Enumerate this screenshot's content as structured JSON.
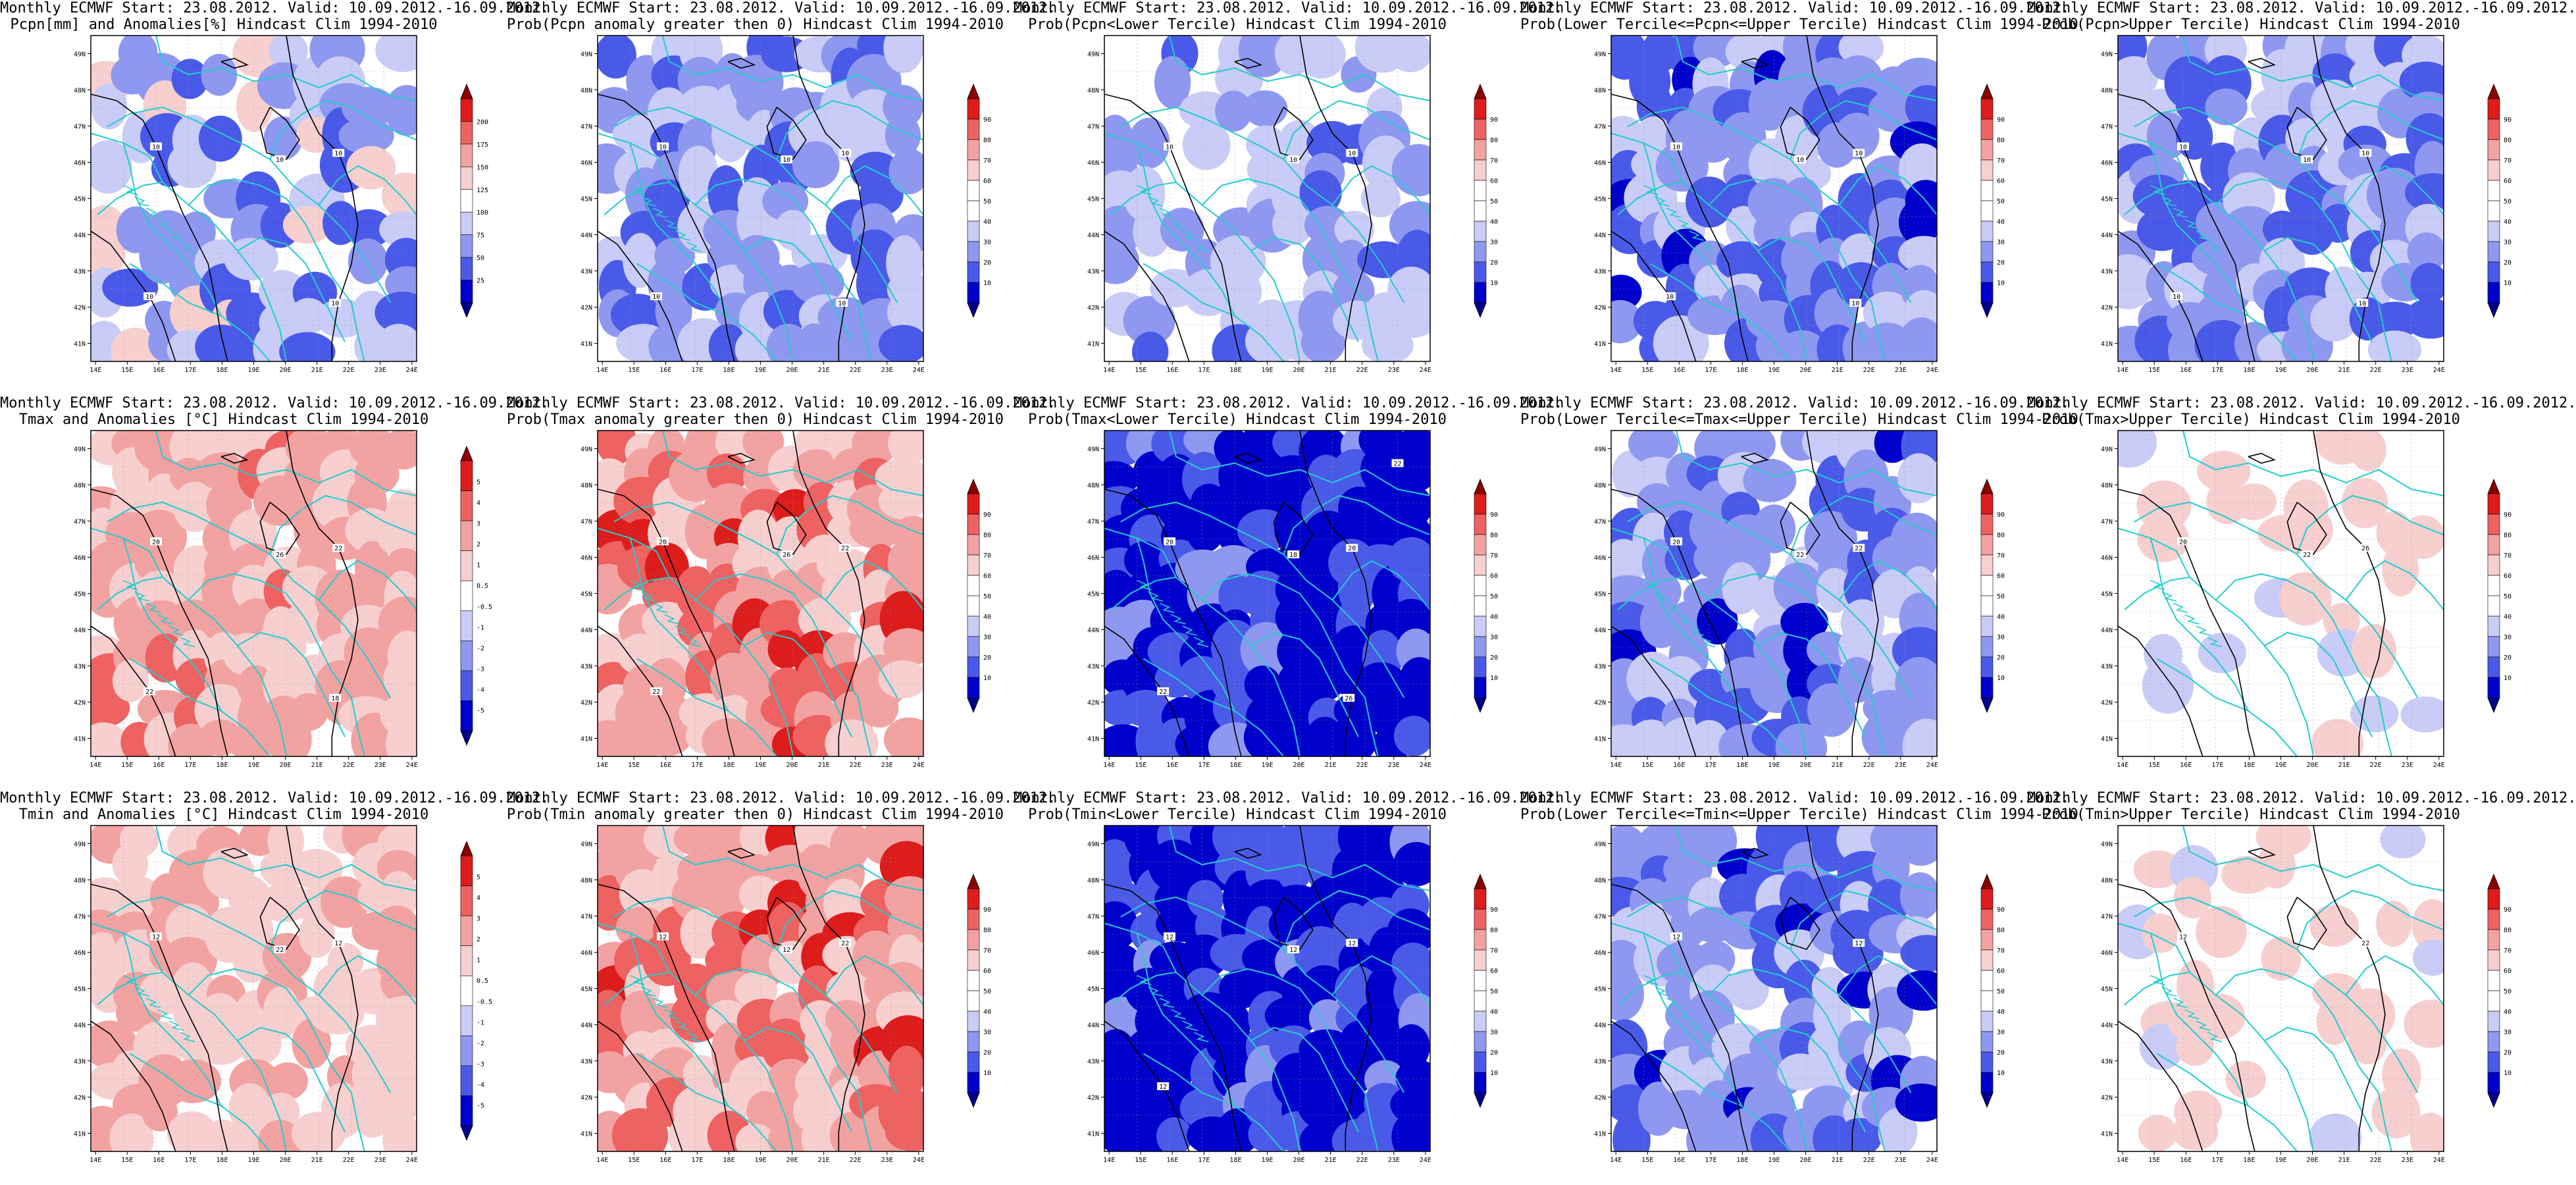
{
  "palette": {
    "blue_dark": "#0000cc",
    "blue_mid": "#4a5ae8",
    "blue_light": "#8f98f0",
    "blue_pale": "#c8ccf6",
    "white": "#ffffff",
    "red_pale": "#f7cfcf",
    "red_light": "#f3a2a2",
    "red_mid": "#ee6262",
    "red_dark": "#dd1c1c",
    "border": "#22cccc",
    "contour": "#000000"
  },
  "axes": {
    "lon_ticks": [
      "14E",
      "15E",
      "16E",
      "17E",
      "18E",
      "19E",
      "20E",
      "21E",
      "22E",
      "23E",
      "24E"
    ],
    "lat_ticks": [
      "49N",
      "48N",
      "47N",
      "46N",
      "45N",
      "44N",
      "43N",
      "42N",
      "41N"
    ]
  },
  "panels": [
    {
      "line1": "Monthly ECMWF Start: 23.08.2012. Valid: 10.09.2012.-16.09.2012.",
      "line2": "Pcpn[mm] and Anomalies[%] Hindcast Clim 1994-2010",
      "scale": "anom",
      "field_theme": "blue_patchy",
      "cbar_labels": [
        "200",
        "175",
        "150",
        "125",
        "100",
        "75",
        "50",
        "25"
      ],
      "contour_labels": [
        "10",
        "10",
        "10",
        "10",
        "10"
      ]
    },
    {
      "line1": "Monthly ECMWF Start: 23.08.2012. Valid: 10.09.2012.-16.09.2012.",
      "line2": "Prob(Pcpn anomaly greater then 0) Hindcast Clim 1994-2010",
      "scale": "prob",
      "field_theme": "blue_moderate",
      "cbar_labels": [
        "90",
        "80",
        "70",
        "60",
        "50",
        "40",
        "30",
        "20",
        "10"
      ],
      "contour_labels": [
        "10",
        "10",
        "10",
        "10",
        "10"
      ]
    },
    {
      "line1": "Monthly ECMWF Start: 23.08.2012. Valid: 10.09.2012.-16.09.2012.",
      "line2": "Prob(Pcpn<Lower Tercile) Hindcast Clim 1994-2010",
      "scale": "prob",
      "field_theme": "blue_light_mix",
      "cbar_labels": [
        "90",
        "80",
        "70",
        "60",
        "50",
        "40",
        "30",
        "20",
        "10"
      ],
      "contour_labels": [
        "10",
        "10",
        "10"
      ]
    },
    {
      "line1": "Monthly ECMWF Start: 23.08.2012. Valid: 10.09.2012.-16.09.2012.",
      "line2": "Prob(Lower Tercile<=Pcpn<=Upper Tercile) Hindcast Clim 1994-2010",
      "scale": "prob",
      "field_theme": "blue_strong_mix",
      "cbar_labels": [
        "90",
        "80",
        "70",
        "60",
        "50",
        "40",
        "30",
        "20",
        "10"
      ],
      "contour_labels": [
        "10",
        "10",
        "10",
        "10",
        "10"
      ]
    },
    {
      "line1": "Monthly ECMWF Start: 23.08.2012. Valid: 10.09.2012.-16.09.2012.",
      "line2": "Prob(Pcpn>Upper Tercile) Hindcast Clim 1994-2010",
      "scale": "prob",
      "field_theme": "blue_moderate",
      "cbar_labels": [
        "90",
        "80",
        "70",
        "60",
        "50",
        "40",
        "30",
        "20",
        "10"
      ],
      "contour_labels": [
        "10",
        "10",
        "10",
        "10",
        "10"
      ]
    },
    {
      "line1": "Monthly ECMWF Start: 23.08.2012. Valid: 10.09.2012.-16.09.2012.",
      "line2": "Tmax and Anomalies [°C] Hindcast Clim 1994-2010",
      "scale": "temp",
      "field_theme": "red_moderate",
      "cbar_labels": [
        "5",
        "4",
        "3",
        "2",
        "1",
        "0.5",
        "-0.5",
        "-1",
        "-2",
        "-3",
        "-4",
        "-5"
      ],
      "contour_labels": [
        "20",
        "22",
        "26",
        "22",
        "18"
      ]
    },
    {
      "line1": "Monthly ECMWF Start: 23.08.2012. Valid: 10.09.2012.-16.09.2012.",
      "line2": "Prob(Tmax anomaly greater then 0) Hindcast Clim 1994-2010",
      "scale": "prob",
      "field_theme": "red_strong",
      "cbar_labels": [
        "90",
        "80",
        "70",
        "60",
        "50",
        "40",
        "30",
        "20",
        "10"
      ],
      "contour_labels": [
        "20",
        "22",
        "26",
        "22"
      ]
    },
    {
      "line1": "Monthly ECMWF Start: 23.08.2012. Valid: 10.09.2012.-16.09.2012.",
      "line2": "Prob(Tmax<Lower Tercile) Hindcast Clim 1994-2010",
      "scale": "prob",
      "field_theme": "blue_deep",
      "cbar_labels": [
        "90",
        "80",
        "70",
        "60",
        "50",
        "40",
        "30",
        "20",
        "10"
      ],
      "contour_labels": [
        "20",
        "20",
        "18",
        "22",
        "26",
        "22"
      ]
    },
    {
      "line1": "Monthly ECMWF Start: 23.08.2012. Valid: 10.09.2012.-16.09.2012.",
      "line2": "Prob(Lower Tercile<=Tmax<=Upper Tercile) Hindcast Clim 1994-2010",
      "scale": "prob",
      "field_theme": "blue_strong_mix",
      "cbar_labels": [
        "90",
        "80",
        "70",
        "60",
        "50",
        "40",
        "30",
        "20",
        "10"
      ],
      "contour_labels": [
        "20",
        "22",
        "22"
      ]
    },
    {
      "line1": "Monthly ECMWF Start: 23.08.2012. Valid: 10.09.2012.-16.09.2012.",
      "line2": "Prob(Tmax>Upper Tercile) Hindcast Clim 1994-2010",
      "scale": "prob",
      "field_theme": "mostly_white_pink",
      "cbar_labels": [
        "90",
        "80",
        "70",
        "60",
        "50",
        "40",
        "30",
        "20",
        "10"
      ],
      "contour_labels": [
        "20",
        "26",
        "22"
      ]
    },
    {
      "line1": "Monthly ECMWF Start: 23.08.2012. Valid: 10.09.2012.-16.09.2012.",
      "line2": "Tmin and Anomalies [°C] Hindcast Clim 1994-2010",
      "scale": "temp",
      "field_theme": "red_light",
      "cbar_labels": [
        "5",
        "4",
        "3",
        "2",
        "1",
        "0.5",
        "-0.5",
        "-1",
        "-2",
        "-3",
        "-4",
        "-5"
      ],
      "contour_labels": [
        "12",
        "12",
        "22"
      ]
    },
    {
      "line1": "Monthly ECMWF Start: 23.08.2012. Valid: 10.09.2012.-16.09.2012.",
      "line2": "Prob(Tmin anomaly greater then 0) Hindcast Clim 1994-2010",
      "scale": "prob",
      "field_theme": "red_strong",
      "cbar_labels": [
        "90",
        "80",
        "70",
        "60",
        "50",
        "40",
        "30",
        "20",
        "10"
      ],
      "contour_labels": [
        "12",
        "22",
        "12"
      ]
    },
    {
      "line1": "Monthly ECMWF Start: 23.08.2012. Valid: 10.09.2012.-16.09.2012.",
      "line2": "Prob(Tmin<Lower Tercile) Hindcast Clim 1994-2010",
      "scale": "prob",
      "field_theme": "blue_deep",
      "cbar_labels": [
        "90",
        "80",
        "70",
        "60",
        "50",
        "40",
        "30",
        "20",
        "10"
      ],
      "contour_labels": [
        "12",
        "12",
        "12",
        "12"
      ]
    },
    {
      "line1": "Monthly ECMWF Start: 23.08.2012. Valid: 10.09.2012.-16.09.2012.",
      "line2": "Prob(Lower Tercile<=Tmin<=Upper Tercile) Hindcast Clim 1994-2010",
      "scale": "prob",
      "field_theme": "blue_strong_mix",
      "cbar_labels": [
        "90",
        "80",
        "70",
        "60",
        "50",
        "40",
        "30",
        "20",
        "10"
      ],
      "contour_labels": [
        "12",
        "12"
      ]
    },
    {
      "line1": "Monthly ECMWF Start: 23.08.2012. Valid: 10.09.2012.-16.09.2012.",
      "line2": "Prob(Tmin>Upper Tercile) Hindcast Clim 1994-2010",
      "scale": "prob",
      "field_theme": "mostly_white_pink",
      "cbar_labels": [
        "90",
        "80",
        "70",
        "60",
        "50",
        "40",
        "30",
        "20",
        "10"
      ],
      "contour_labels": [
        "12",
        "22"
      ]
    }
  ]
}
